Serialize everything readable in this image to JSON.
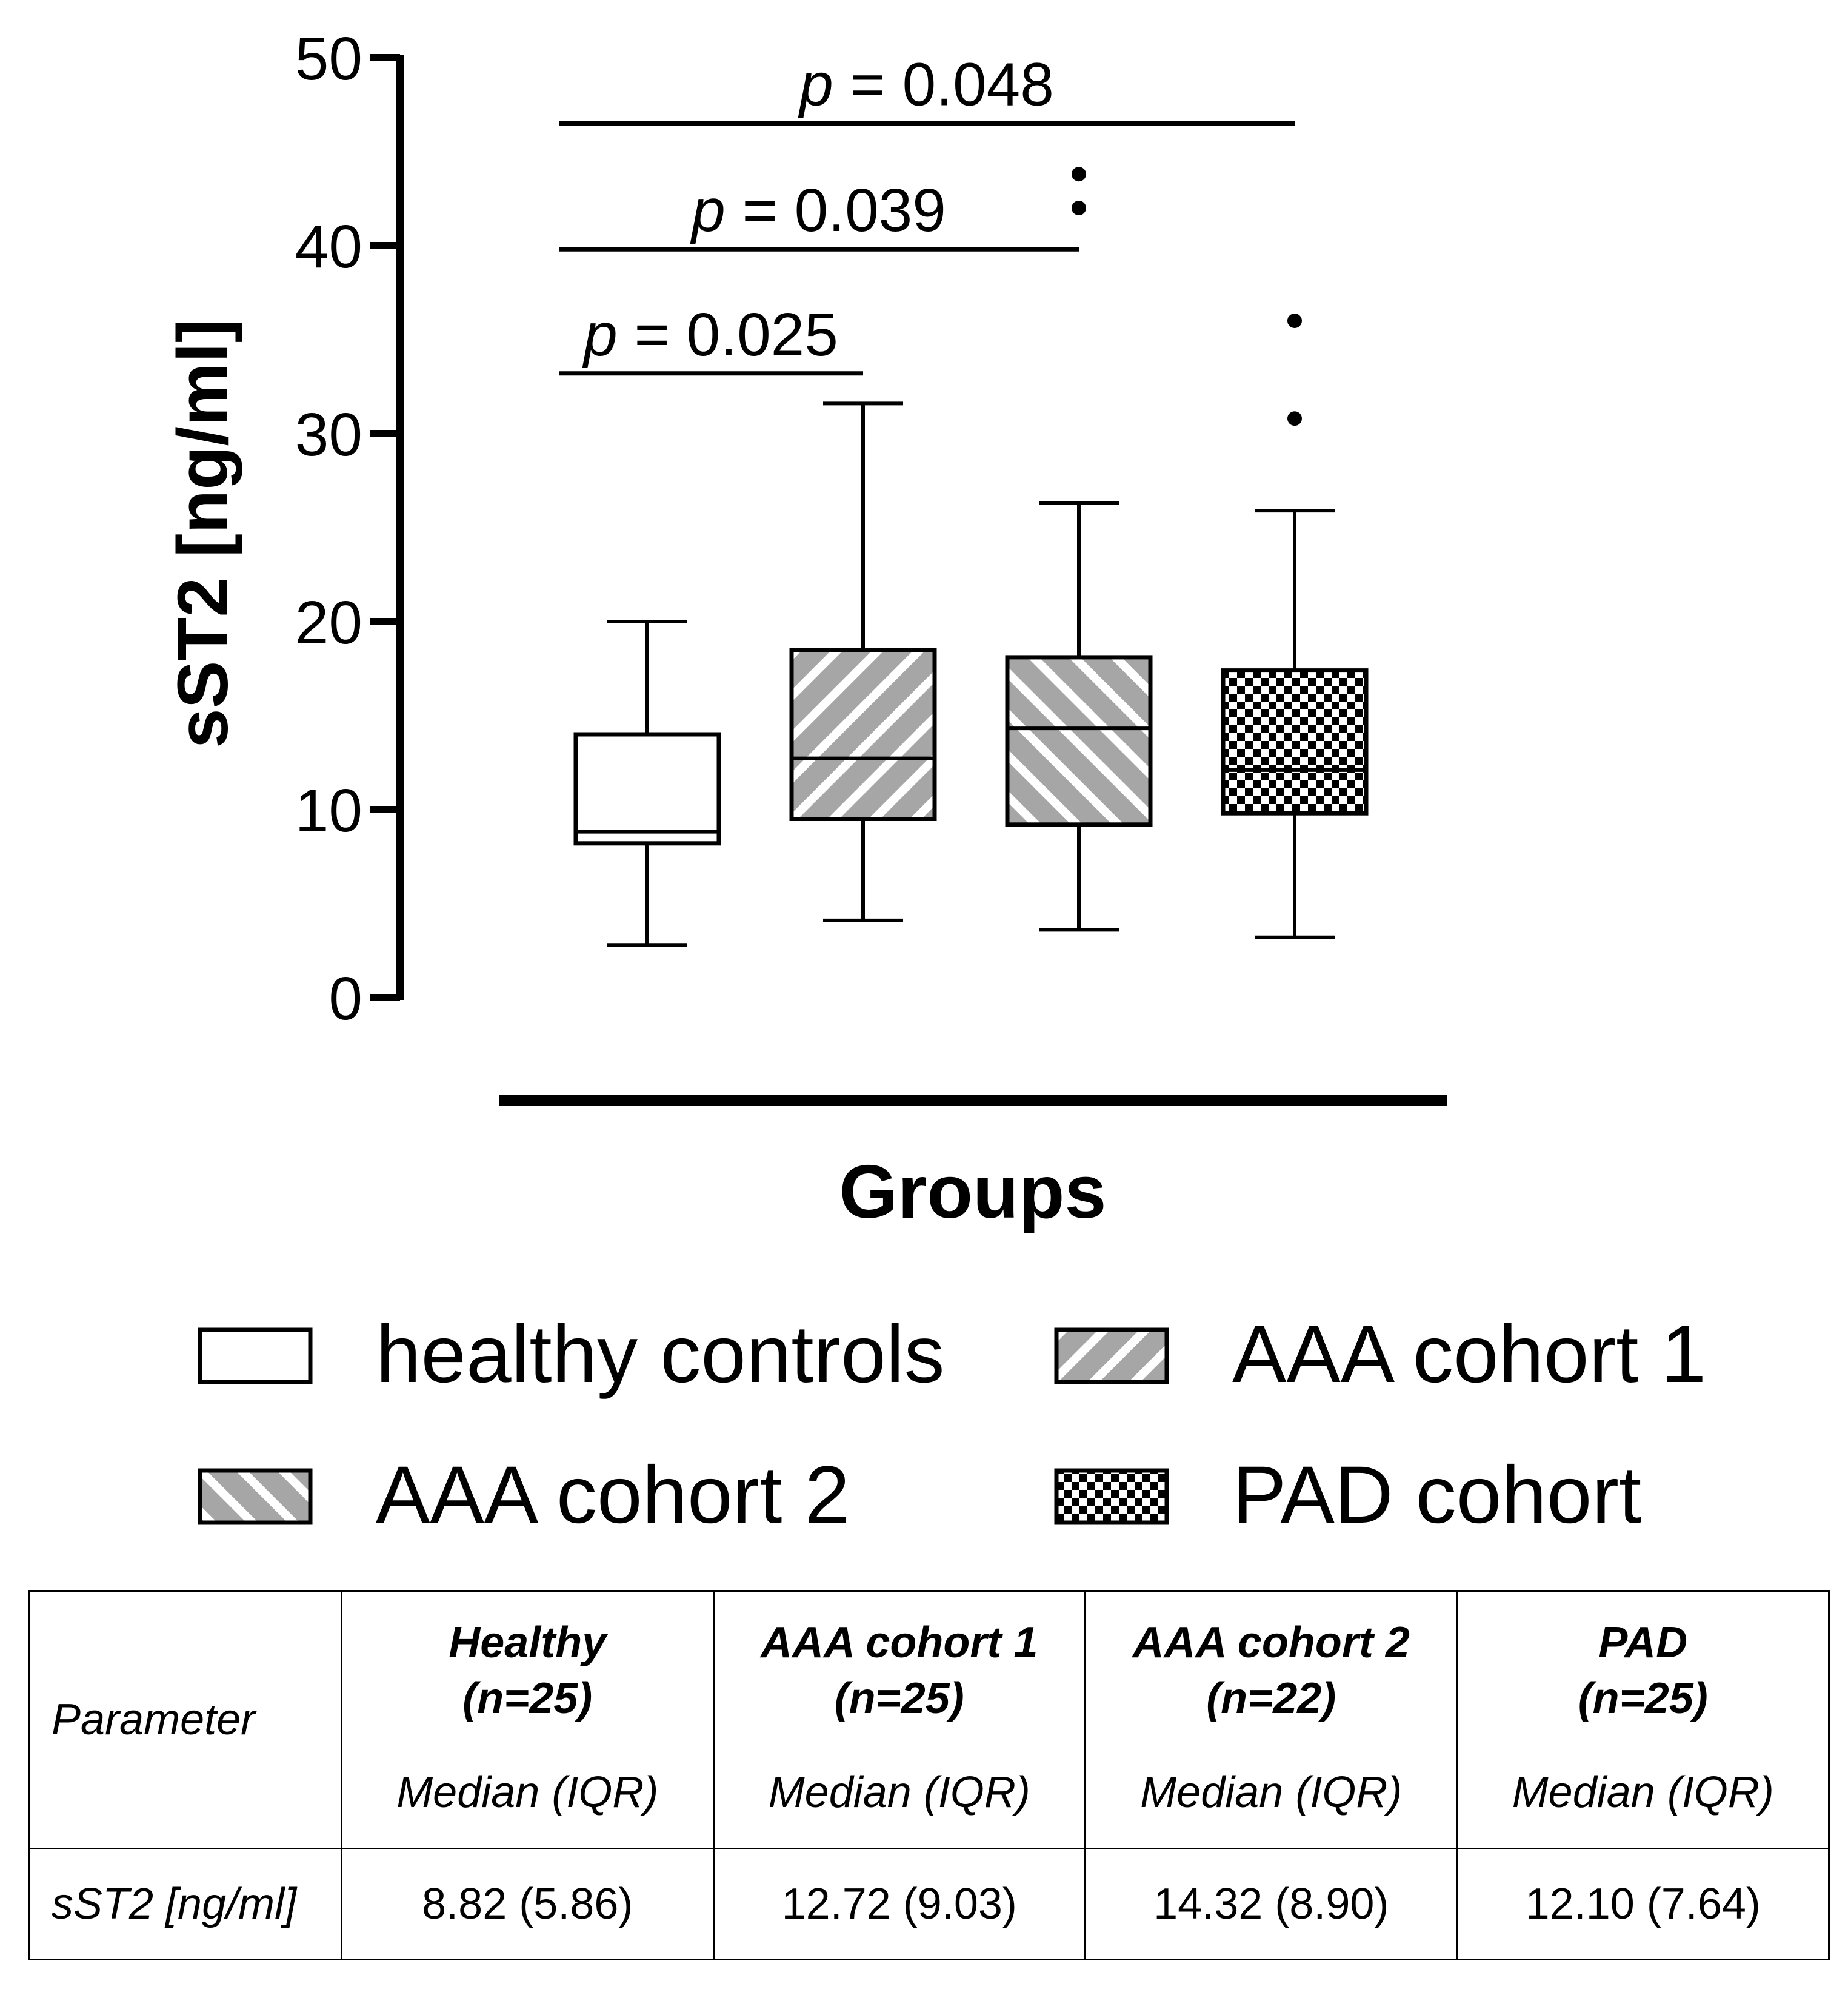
{
  "chart_data": {
    "type": "box",
    "ylabel": "sST2 [ng/ml]",
    "xlabel": "Groups",
    "ylim": [
      0,
      50
    ],
    "yticks": [
      0,
      10,
      20,
      30,
      40,
      50
    ],
    "groups": [
      {
        "name": "healthy controls",
        "pattern": "none",
        "whisker_low": 2.8,
        "q1": 8.2,
        "median": 8.82,
        "q3": 14.0,
        "whisker_high": 20.0,
        "outliers": []
      },
      {
        "name": "AAA cohort 1",
        "pattern": "diag-up",
        "whisker_low": 4.1,
        "q1": 9.5,
        "median": 12.72,
        "q3": 18.5,
        "whisker_high": 31.6,
        "outliers": []
      },
      {
        "name": "AAA cohort 2",
        "pattern": "diag-down",
        "whisker_low": 3.6,
        "q1": 9.2,
        "median": 14.32,
        "q3": 18.1,
        "whisker_high": 26.3,
        "outliers": [
          42.0,
          43.8
        ]
      },
      {
        "name": "PAD cohort",
        "pattern": "checker",
        "whisker_low": 3.2,
        "q1": 9.8,
        "median": 12.1,
        "q3": 17.4,
        "whisker_high": 25.9,
        "outliers": [
          30.8,
          36.0
        ]
      }
    ],
    "significance": [
      {
        "from": 0,
        "to": 1,
        "y": 33.2,
        "p_symbol": "p",
        "p_text": " = 0.025"
      },
      {
        "from": 0,
        "to": 2,
        "y": 39.8,
        "p_symbol": "p",
        "p_text": " = 0.039"
      },
      {
        "from": 0,
        "to": 3,
        "y": 46.5,
        "p_symbol": "p",
        "p_text": " = 0.048"
      }
    ],
    "legend": [
      {
        "label": "healthy controls",
        "pattern": "none"
      },
      {
        "label": "AAA cohort 1",
        "pattern": "diag-up"
      },
      {
        "label": "AAA cohort 2",
        "pattern": "diag-down"
      },
      {
        "label": "PAD cohort",
        "pattern": "checker"
      }
    ]
  },
  "table": {
    "parameter_header": "Parameter",
    "columns": [
      {
        "name": "Healthy",
        "n": "(n=25)",
        "stat": "Median (IQR)"
      },
      {
        "name": "AAA cohort 1",
        "n": "(n=25)",
        "stat": "Median (IQR)"
      },
      {
        "name": "AAA cohort 2",
        "n": "(n=22)",
        "stat": "Median (IQR)"
      },
      {
        "name": "PAD",
        "n": "(n=25)",
        "stat": "Median (IQR)"
      }
    ],
    "row_label": "sST2 [ng/ml]",
    "row_values": [
      "8.82 (5.86)",
      "12.72 (9.03)",
      "14.32 (8.90)",
      "12.10 (7.64)"
    ]
  }
}
